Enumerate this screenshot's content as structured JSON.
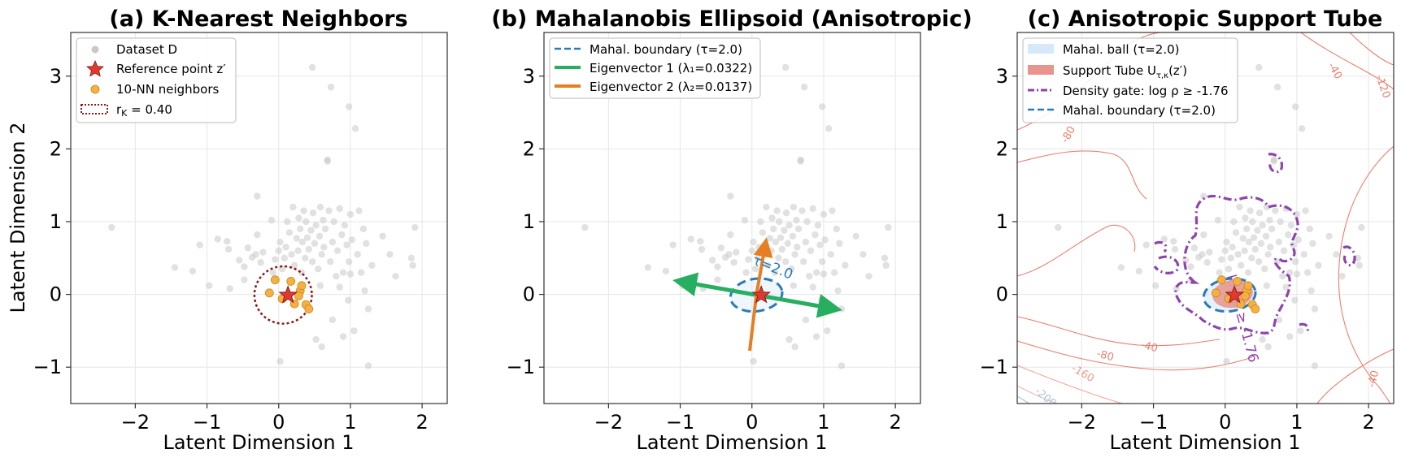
{
  "colors": {
    "dataset": "#c8c8c8",
    "reference": "#e03a2f",
    "neighbors": "#f5b041",
    "radius": "#8b1a1a",
    "boundary": "#2a7ab9",
    "eig1": "#27ae60",
    "eig2": "#e67e22",
    "gate": "#8e44ad",
    "tube": "#e8938b",
    "ball": "#d6e9f8"
  },
  "axes_common": {
    "xlabel": "Latent Dimension 1",
    "ylabel": "Latent Dimension 2",
    "xlim": [
      -2.9,
      2.35
    ],
    "ylim": [
      -1.5,
      3.6
    ],
    "xticks": [
      -2,
      -1,
      0,
      1,
      2
    ],
    "yticks": [
      -1,
      0,
      1,
      2,
      3
    ],
    "xtick_labels": [
      "−2",
      "−1",
      "0",
      "1",
      "2"
    ],
    "ytick_labels": [
      "−1",
      "0",
      "1",
      "2",
      "3"
    ]
  },
  "chart_data": [
    {
      "type": "scatter",
      "title": "(a) K-Nearest Neighbors",
      "xlabel": "Latent Dimension 1",
      "ylabel": "Latent Dimension 2",
      "xlim": [
        -2.9,
        2.35
      ],
      "ylim": [
        -1.5,
        3.6
      ],
      "grid": true,
      "legend_position": "top-left",
      "legend": [
        "Dataset D",
        "Reference point z′",
        "10-NN neighbors",
        "r_K = 0.40"
      ],
      "series": [
        {
          "name": "Dataset D",
          "marker": "circle"
        },
        {
          "name": "Reference point z′",
          "marker": "star",
          "x": 0.13,
          "y": -0.01
        },
        {
          "name": "10-NN neighbors",
          "marker": "circle",
          "points": [
            [
              -0.13,
              0.02
            ],
            [
              -0.05,
              0.2
            ],
            [
              0.17,
              0.18
            ],
            [
              0.3,
              0.05
            ],
            [
              0.28,
              -0.02
            ],
            [
              0.32,
              0.12
            ],
            [
              0.38,
              -0.14
            ],
            [
              0.42,
              -0.2
            ],
            [
              0.22,
              -0.13
            ],
            [
              0.05,
              -0.06
            ]
          ]
        },
        {
          "name": "r_K = 0.40",
          "shape": "circle",
          "center": [
            0.13,
            -0.01
          ],
          "radius": 0.4
        }
      ]
    },
    {
      "type": "scatter",
      "title": "(b) Mahalanobis Ellipsoid (Anisotropic)",
      "xlabel": "Latent Dimension 1",
      "xlim": [
        -2.9,
        2.35
      ],
      "ylim": [
        -1.5,
        3.6
      ],
      "grid": true,
      "legend_position": "top-left",
      "legend": [
        "Mahal. boundary (τ=2.0)",
        "Eigenvector 1 (λ₁=0.0322)",
        "Eigenvector 2 (λ₂=0.0137)"
      ],
      "annotation": "τ=2.0",
      "series": [
        {
          "name": "Mahal. boundary (τ=2.0)",
          "shape": "ellipse",
          "center": [
            0.13,
            -0.01
          ],
          "semi_axes": [
            0.36,
            0.23
          ],
          "angle_deg": -8
        },
        {
          "name": "Eigenvector 1 (λ₁=0.0322)",
          "from": [
            0.13,
            -0.01
          ],
          "to_pos": [
            1.3,
            -0.22
          ],
          "to_neg": [
            -1.05,
            0.19
          ]
        },
        {
          "name": "Eigenvector 2 (λ₂=0.0137)",
          "from": [
            0.13,
            -0.01
          ],
          "to_pos": [
            0.27,
            0.75
          ],
          "to_neg": [
            0.0,
            -0.78
          ]
        }
      ]
    },
    {
      "type": "scatter",
      "title": "(c) Anisotropic Support Tube",
      "xlabel": "Latent Dimension 1",
      "xlim": [
        -2.9,
        2.35
      ],
      "ylim": [
        -1.5,
        3.6
      ],
      "grid": true,
      "legend_position": "top-left",
      "legend": [
        "Mahal. ball (τ=2.0)",
        "Support Tube Uτ,κ(z′)",
        "Density gate: log ρ ≥ -1.76",
        "Mahal. boundary (τ=2.0)"
      ],
      "contour_labels": [
        "-40",
        "-80",
        "-120",
        "-160",
        "-200",
        "-40",
        "-80",
        "-40",
        "-120"
      ],
      "gate_label": "log ρ ≥ -1.76"
    }
  ],
  "dataset_points": [
    [
      -2.33,
      0.92
    ],
    [
      -1.45,
      0.37
    ],
    [
      -1.2,
      0.32
    ],
    [
      -1.1,
      0.68
    ],
    [
      -0.97,
      0.12
    ],
    [
      -0.85,
      0.76
    ],
    [
      -0.72,
      0.73
    ],
    [
      -0.7,
      0.62
    ],
    [
      -0.68,
      0.08
    ],
    [
      -0.55,
      0.47
    ],
    [
      -0.48,
      0.38
    ],
    [
      -0.43,
      0.64
    ],
    [
      -0.37,
      0.51
    ],
    [
      -0.32,
      0.55
    ],
    [
      -0.3,
      0.82
    ],
    [
      -0.25,
      0.44
    ],
    [
      -0.22,
      0.58
    ],
    [
      -0.1,
      1.02
    ],
    [
      -0.08,
      0.3
    ],
    [
      -0.05,
      0.48
    ],
    [
      0.0,
      0.6
    ],
    [
      0.02,
      0.72
    ],
    [
      0.05,
      0.35
    ],
    [
      0.08,
      0.5
    ],
    [
      0.1,
      0.65
    ],
    [
      0.12,
      1.0
    ],
    [
      0.15,
      0.85
    ],
    [
      0.18,
      0.55
    ],
    [
      0.2,
      1.2
    ],
    [
      0.22,
      0.4
    ],
    [
      0.25,
      0.77
    ],
    [
      0.27,
      0.6
    ],
    [
      0.28,
      1.05
    ],
    [
      0.3,
      0.9
    ],
    [
      0.32,
      0.3
    ],
    [
      0.33,
      0.72
    ],
    [
      0.35,
      1.15
    ],
    [
      0.37,
      0.5
    ],
    [
      0.38,
      1.0
    ],
    [
      0.4,
      0.78
    ],
    [
      0.42,
      0.62
    ],
    [
      0.45,
      0.88
    ],
    [
      0.47,
      0.45
    ],
    [
      0.48,
      1.12
    ],
    [
      0.5,
      0.7
    ],
    [
      0.52,
      0.95
    ],
    [
      0.55,
      0.35
    ],
    [
      0.57,
      0.8
    ],
    [
      0.58,
      1.2
    ],
    [
      0.6,
      0.55
    ],
    [
      0.62,
      1.02
    ],
    [
      0.63,
      0.65
    ],
    [
      0.65,
      0.9
    ],
    [
      0.68,
      1.85
    ],
    [
      0.7,
      1.15
    ],
    [
      0.72,
      0.45
    ],
    [
      0.73,
      2.85
    ],
    [
      0.75,
      0.72
    ],
    [
      0.77,
      1.0
    ],
    [
      0.8,
      0.25
    ],
    [
      0.82,
      0.6
    ],
    [
      0.85,
      1.18
    ],
    [
      0.88,
      0.82
    ],
    [
      0.9,
      0.3
    ],
    [
      0.92,
      0.95
    ],
    [
      0.95,
      0.68
    ],
    [
      0.97,
      -0.08
    ],
    [
      0.98,
      0.45
    ],
    [
      1.0,
      1.1
    ],
    [
      1.02,
      0.75
    ],
    [
      1.05,
      -0.5
    ],
    [
      1.07,
      2.28
    ],
    [
      1.1,
      0.55
    ],
    [
      1.12,
      1.15
    ],
    [
      1.15,
      0.3
    ],
    [
      1.18,
      0.9
    ],
    [
      1.2,
      0.05
    ],
    [
      1.22,
      0.7
    ],
    [
      1.25,
      -0.98
    ],
    [
      1.3,
      0.4
    ],
    [
      1.45,
      0.8
    ],
    [
      1.55,
      0.55
    ],
    [
      1.63,
      0.25
    ],
    [
      1.85,
      0.5
    ],
    [
      1.87,
      0.4
    ],
    [
      1.9,
      0.92
    ],
    [
      0.47,
      3.12
    ],
    [
      0.68,
      1.83
    ],
    [
      0.98,
      2.58
    ],
    [
      0.9,
      -0.58
    ],
    [
      0.58,
      0.12
    ],
    [
      0.52,
      -0.62
    ],
    [
      0.02,
      -0.92
    ],
    [
      0.6,
      -0.72
    ],
    [
      0.75,
      -0.35
    ],
    [
      0.85,
      0.1
    ],
    [
      -0.48,
      0.2
    ],
    [
      -0.3,
      1.35
    ],
    [
      1.25,
      -0.2
    ],
    [
      1.0,
      0.28
    ]
  ]
}
